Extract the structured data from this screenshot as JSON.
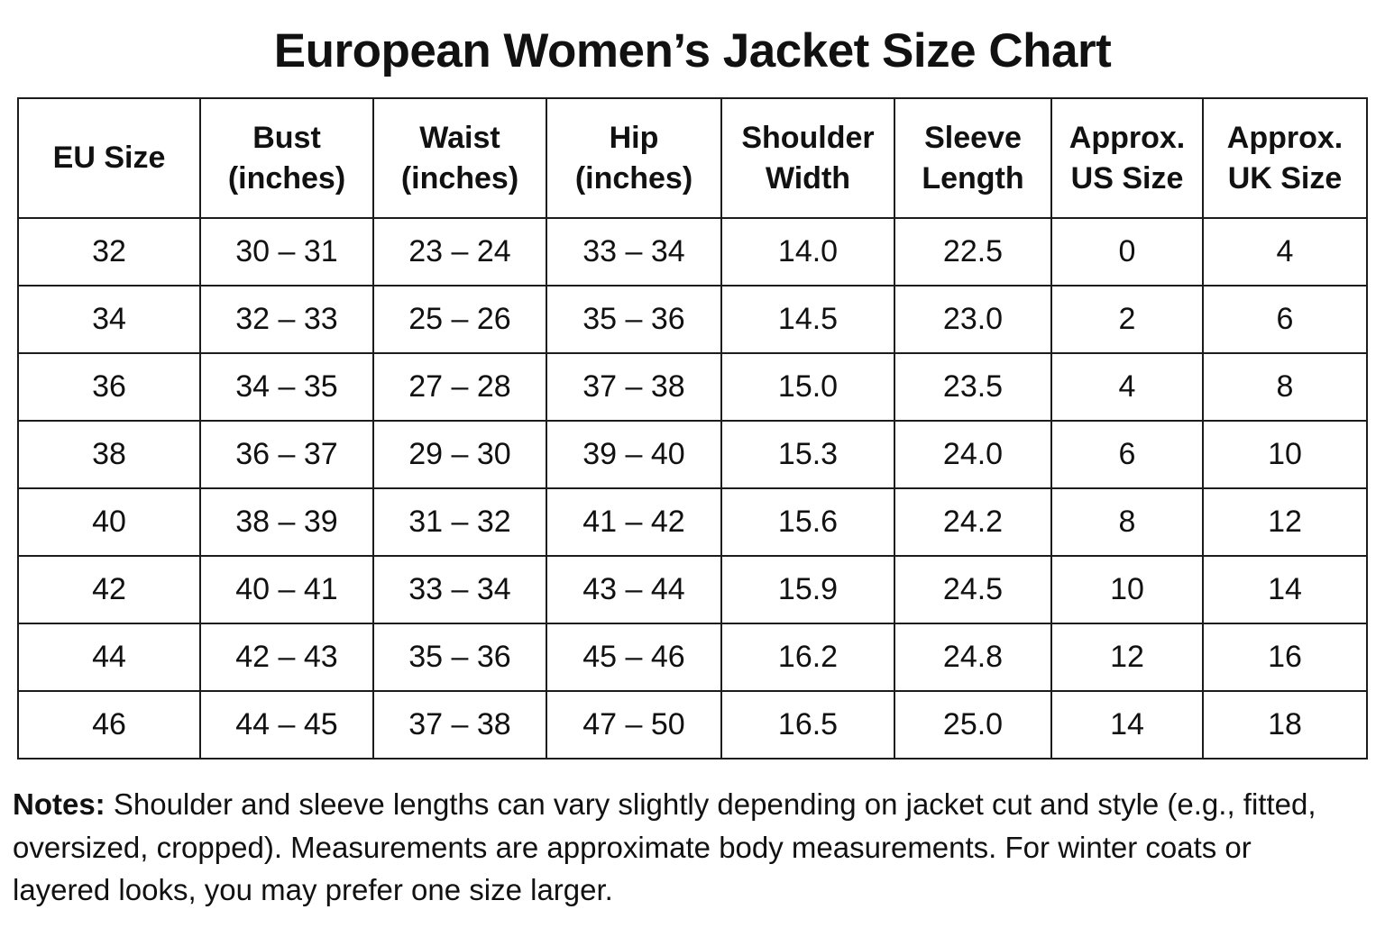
{
  "title": "European Women’s Jacket Size Chart",
  "table": {
    "columns": [
      "EU Size",
      "Bust\n(inches)",
      "Waist\n(inches)",
      "Hip\n(inches)",
      "Shoulder\nWidth",
      "Sleeve\nLength",
      "Approx.\nUS Size",
      "Approx.\nUK Size"
    ],
    "rows": [
      [
        "32",
        "30 – 31",
        "23 – 24",
        "33 – 34",
        "14.0",
        "22.5",
        "0",
        "4"
      ],
      [
        "34",
        "32 – 33",
        "25 – 26",
        "35 – 36",
        "14.5",
        "23.0",
        "2",
        "6"
      ],
      [
        "36",
        "34 – 35",
        "27 – 28",
        "37 – 38",
        "15.0",
        "23.5",
        "4",
        "8"
      ],
      [
        "38",
        "36 – 37",
        "29 – 30",
        "39 – 40",
        "15.3",
        "24.0",
        "6",
        "10"
      ],
      [
        "40",
        "38 – 39",
        "31 – 32",
        "41 – 42",
        "15.6",
        "24.2",
        "8",
        "12"
      ],
      [
        "42",
        "40 – 41",
        "33 – 34",
        "43 – 44",
        "15.9",
        "24.5",
        "10",
        "14"
      ],
      [
        "44",
        "42 – 43",
        "35 – 36",
        "45 – 46",
        "16.2",
        "24.8",
        "12",
        "16"
      ],
      [
        "46",
        "44 – 45",
        "37 – 38",
        "47 – 50",
        "16.5",
        "25.0",
        "14",
        "18"
      ]
    ]
  },
  "notes": {
    "label": "Notes:",
    "text": " Shoulder and sleeve lengths can vary slightly depending on jacket cut and style (e.g., fitted, oversized, cropped). Measurements are approximate body measurements. For winter coats or layered looks, you may prefer one size larger."
  },
  "chart_data": {
    "type": "table",
    "title": "European Women’s Jacket Size Chart",
    "columns": [
      "EU Size",
      "Bust (inches)",
      "Waist (inches)",
      "Hip (inches)",
      "Shoulder Width",
      "Sleeve Length",
      "Approx. US Size",
      "Approx. UK Size"
    ],
    "rows": [
      [
        "32",
        "30 – 31",
        "23 – 24",
        "33 – 34",
        "14.0",
        "22.5",
        "0",
        "4"
      ],
      [
        "34",
        "32 – 33",
        "25 – 26",
        "35 – 36",
        "14.5",
        "23.0",
        "2",
        "6"
      ],
      [
        "36",
        "34 – 35",
        "27 – 28",
        "37 – 38",
        "15.0",
        "23.5",
        "4",
        "8"
      ],
      [
        "38",
        "36 – 37",
        "29 – 30",
        "39 – 40",
        "15.3",
        "24.0",
        "6",
        "10"
      ],
      [
        "40",
        "38 – 39",
        "31 – 32",
        "41 – 42",
        "15.6",
        "24.2",
        "8",
        "12"
      ],
      [
        "42",
        "40 – 41",
        "33 – 34",
        "43 – 44",
        "15.9",
        "24.5",
        "10",
        "14"
      ],
      [
        "44",
        "42 – 43",
        "35 – 36",
        "45 – 46",
        "16.2",
        "24.8",
        "12",
        "16"
      ],
      [
        "46",
        "44 – 45",
        "37 – 38",
        "47 – 50",
        "16.5",
        "25.0",
        "14",
        "18"
      ]
    ]
  }
}
